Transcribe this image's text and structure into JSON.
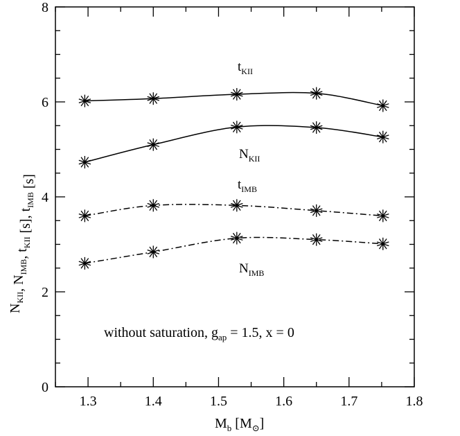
{
  "chart_data": {
    "type": "line",
    "xlabel": {
      "main": "M",
      "sub": "b",
      "unit_open": " [M",
      "unit_sub": "⊙",
      "unit_close": "]"
    },
    "ylabel": {
      "parts": [
        {
          "main": "N",
          "sub": "KII"
        },
        {
          "main": ", N",
          "sub": "IMB"
        },
        {
          "main": ", t",
          "sub": "KII"
        },
        {
          "main": " [s], t",
          "sub": "IMB"
        },
        {
          "main": " [s]",
          "sub": ""
        }
      ]
    },
    "xlim": [
      1.25,
      1.8
    ],
    "ylim": [
      0,
      8
    ],
    "xticks": [
      "1.3",
      "1.4",
      "1.5",
      "1.6",
      "1.7",
      "1.8"
    ],
    "yticks": [
      "0",
      "2",
      "4",
      "6",
      "8"
    ],
    "annotation": {
      "text": "without saturation, g",
      "sub": "ap",
      "rest": " = 1.5, x = 0"
    },
    "series": [
      {
        "name": "t",
        "sub": "KII",
        "style": "solid",
        "x": [
          1.295,
          1.4,
          1.528,
          1.65,
          1.752
        ],
        "values": [
          6.02,
          6.07,
          6.16,
          6.18,
          5.92
        ]
      },
      {
        "name": "N",
        "sub": "KII",
        "style": "solid",
        "x": [
          1.295,
          1.4,
          1.528,
          1.65,
          1.752
        ],
        "values": [
          4.73,
          5.1,
          5.47,
          5.46,
          5.26
        ]
      },
      {
        "name": "t",
        "sub": "IMB",
        "style": "dashdot",
        "x": [
          1.295,
          1.4,
          1.528,
          1.65,
          1.752
        ],
        "values": [
          3.6,
          3.82,
          3.82,
          3.71,
          3.6
        ]
      },
      {
        "name": "N",
        "sub": "IMB",
        "style": "dashdot",
        "x": [
          1.295,
          1.4,
          1.528,
          1.65,
          1.752
        ],
        "values": [
          2.6,
          2.84,
          3.13,
          3.1,
          3.01
        ]
      }
    ]
  }
}
